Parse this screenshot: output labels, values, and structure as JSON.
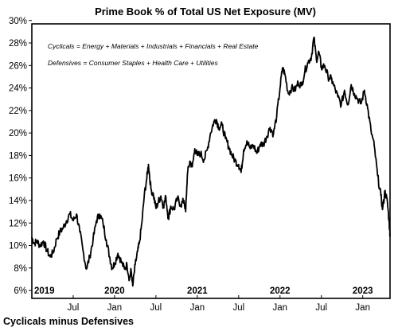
{
  "chart_data": {
    "type": "line",
    "title": "Prime Book % of Total US Net Exposure (MV)",
    "footer": "Cyclicals minus Defensives",
    "annotations": [
      "Cyclicals = Energy + Materials + Industrials + Financials + Real Estate",
      "Defensives = Consumer Staples + Health Care + Utilities"
    ],
    "y_ticks": [
      "30%",
      "28%",
      "26%",
      "24%",
      "22%",
      "20%",
      "18%",
      "16%",
      "14%",
      "12%",
      "10%",
      "8%",
      "6%"
    ],
    "x_month_ticks": [
      {
        "label": "Jul",
        "t": 2019.5
      },
      {
        "label": "Jan",
        "t": 2020.0
      },
      {
        "label": "Jul",
        "t": 2020.5
      },
      {
        "label": "Jan",
        "t": 2021.0
      },
      {
        "label": "Jul",
        "t": 2021.5
      },
      {
        "label": "Jan",
        "t": 2022.0
      },
      {
        "label": "Jul",
        "t": 2022.5
      },
      {
        "label": "Jan",
        "t": 2023.0
      }
    ],
    "x_year_labels": [
      {
        "label": "2019",
        "t": 2019.0
      },
      {
        "label": "2020",
        "t": 2020.0
      },
      {
        "label": "2021",
        "t": 2021.0
      },
      {
        "label": "2022",
        "t": 2022.0
      },
      {
        "label": "2023",
        "t": 2023.0
      }
    ],
    "xlim": [
      2019.0,
      2023.33
    ],
    "ylim": [
      6,
      30
    ],
    "series": [
      {
        "values": [
          [
            2019.0,
            10.7
          ],
          [
            2019.03,
            10.2
          ],
          [
            2019.06,
            10.4
          ],
          [
            2019.1,
            10.0
          ],
          [
            2019.14,
            10.4
          ],
          [
            2019.18,
            9.6
          ],
          [
            2019.22,
            9.0
          ],
          [
            2019.26,
            9.4
          ],
          [
            2019.3,
            10.6
          ],
          [
            2019.34,
            11.2
          ],
          [
            2019.38,
            11.6
          ],
          [
            2019.42,
            12.2
          ],
          [
            2019.46,
            12.8
          ],
          [
            2019.5,
            12.2
          ],
          [
            2019.54,
            12.8
          ],
          [
            2019.58,
            11.2
          ],
          [
            2019.62,
            9.5
          ],
          [
            2019.66,
            7.9
          ],
          [
            2019.7,
            9.0
          ],
          [
            2019.74,
            10.5
          ],
          [
            2019.78,
            12.2
          ],
          [
            2019.82,
            12.8
          ],
          [
            2019.86,
            12.0
          ],
          [
            2019.9,
            10.5
          ],
          [
            2019.94,
            9.0
          ],
          [
            2019.97,
            8.0
          ],
          [
            2020.0,
            8.4
          ],
          [
            2020.04,
            9.3
          ],
          [
            2020.08,
            8.6
          ],
          [
            2020.12,
            7.9
          ],
          [
            2020.15,
            8.3
          ],
          [
            2020.18,
            7.0
          ],
          [
            2020.2,
            7.8
          ],
          [
            2020.22,
            6.4
          ],
          [
            2020.25,
            8.3
          ],
          [
            2020.28,
            9.5
          ],
          [
            2020.3,
            10.2
          ],
          [
            2020.33,
            12.0
          ],
          [
            2020.36,
            14.5
          ],
          [
            2020.39,
            16.0
          ],
          [
            2020.41,
            17.2
          ],
          [
            2020.44,
            15.0
          ],
          [
            2020.47,
            14.5
          ],
          [
            2020.5,
            13.3
          ],
          [
            2020.53,
            13.9
          ],
          [
            2020.56,
            14.4
          ],
          [
            2020.59,
            13.5
          ],
          [
            2020.62,
            14.3
          ],
          [
            2020.65,
            12.4
          ],
          [
            2020.68,
            13.5
          ],
          [
            2020.72,
            13.2
          ],
          [
            2020.76,
            14.2
          ],
          [
            2020.8,
            13.6
          ],
          [
            2020.84,
            14.0
          ],
          [
            2020.86,
            13.0
          ],
          [
            2020.88,
            16.3
          ],
          [
            2020.91,
            17.5
          ],
          [
            2020.94,
            17.0
          ],
          [
            2020.97,
            18.6
          ],
          [
            2021.0,
            18.0
          ],
          [
            2021.04,
            18.2
          ],
          [
            2021.08,
            17.6
          ],
          [
            2021.12,
            18.5
          ],
          [
            2021.16,
            20.0
          ],
          [
            2021.2,
            21.0
          ],
          [
            2021.23,
            21.2
          ],
          [
            2021.26,
            20.5
          ],
          [
            2021.3,
            20.7
          ],
          [
            2021.34,
            19.5
          ],
          [
            2021.38,
            18.8
          ],
          [
            2021.42,
            18.0
          ],
          [
            2021.46,
            17.5
          ],
          [
            2021.5,
            17.2
          ],
          [
            2021.53,
            16.5
          ],
          [
            2021.56,
            18.5
          ],
          [
            2021.6,
            19.3
          ],
          [
            2021.64,
            18.6
          ],
          [
            2021.68,
            18.9
          ],
          [
            2021.72,
            18.2
          ],
          [
            2021.76,
            19.0
          ],
          [
            2021.8,
            19.0
          ],
          [
            2021.84,
            19.7
          ],
          [
            2021.88,
            20.5
          ],
          [
            2021.92,
            19.9
          ],
          [
            2021.96,
            21.5
          ],
          [
            2022.0,
            24.0
          ],
          [
            2022.03,
            25.8
          ],
          [
            2022.06,
            25.2
          ],
          [
            2022.1,
            23.5
          ],
          [
            2022.14,
            24.0
          ],
          [
            2022.18,
            23.8
          ],
          [
            2022.22,
            24.5
          ],
          [
            2022.26,
            24.2
          ],
          [
            2022.3,
            25.5
          ],
          [
            2022.34,
            26.3
          ],
          [
            2022.38,
            26.8
          ],
          [
            2022.41,
            28.5
          ],
          [
            2022.44,
            26.5
          ],
          [
            2022.47,
            27.2
          ],
          [
            2022.5,
            25.8
          ],
          [
            2022.54,
            26.0
          ],
          [
            2022.58,
            25.0
          ],
          [
            2022.62,
            24.8
          ],
          [
            2022.65,
            24.2
          ],
          [
            2022.7,
            23.2
          ],
          [
            2022.74,
            22.5
          ],
          [
            2022.78,
            23.8
          ],
          [
            2022.82,
            22.5
          ],
          [
            2022.86,
            24.3
          ],
          [
            2022.9,
            23.5
          ],
          [
            2022.94,
            23.0
          ],
          [
            2022.98,
            22.6
          ],
          [
            2023.02,
            23.8
          ],
          [
            2023.06,
            22.2
          ],
          [
            2023.1,
            20.2
          ],
          [
            2023.14,
            18.8
          ],
          [
            2023.18,
            16.2
          ],
          [
            2023.22,
            14.4
          ],
          [
            2023.24,
            13.2
          ],
          [
            2023.27,
            14.9
          ],
          [
            2023.3,
            13.7
          ],
          [
            2023.32,
            12.0
          ],
          [
            2023.33,
            11.0
          ]
        ]
      }
    ]
  }
}
